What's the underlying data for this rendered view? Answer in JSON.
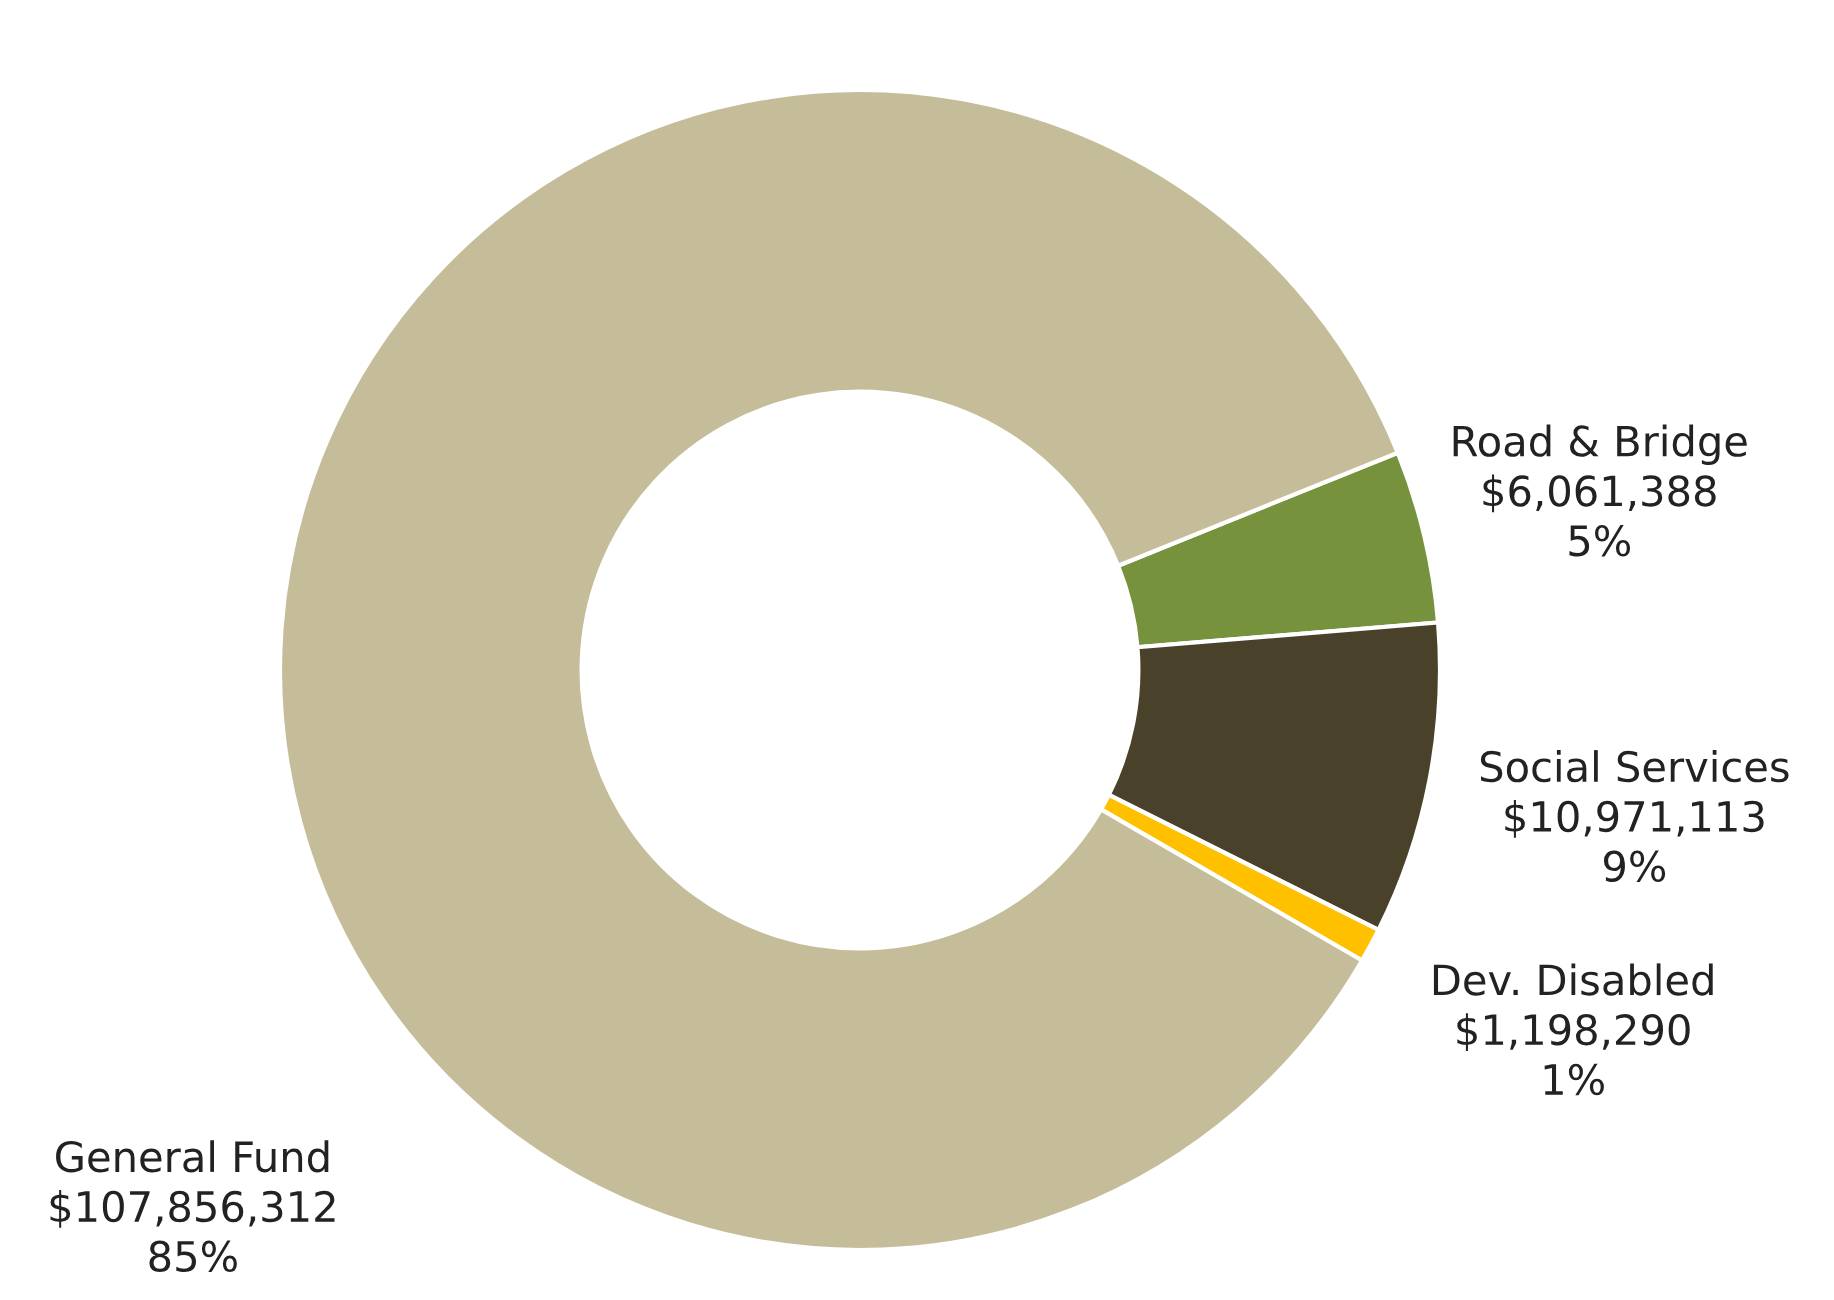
{
  "chart_data": {
    "type": "donut",
    "categories": [
      "Road & Bridge",
      "Social Services",
      "Dev. Disabled",
      "General Fund"
    ],
    "values": [
      6061388,
      10971113,
      1198290,
      107856312
    ],
    "value_labels": [
      "$6,061,388\n5%",
      "$10,971,113\n9%",
      "$1,198,290\n1%",
      "$107,856,312\n85%"
    ],
    "colors": [
      "#76923c",
      "#4a412a",
      "#ffc000",
      "#c5bd99"
    ],
    "legend": false
  }
}
